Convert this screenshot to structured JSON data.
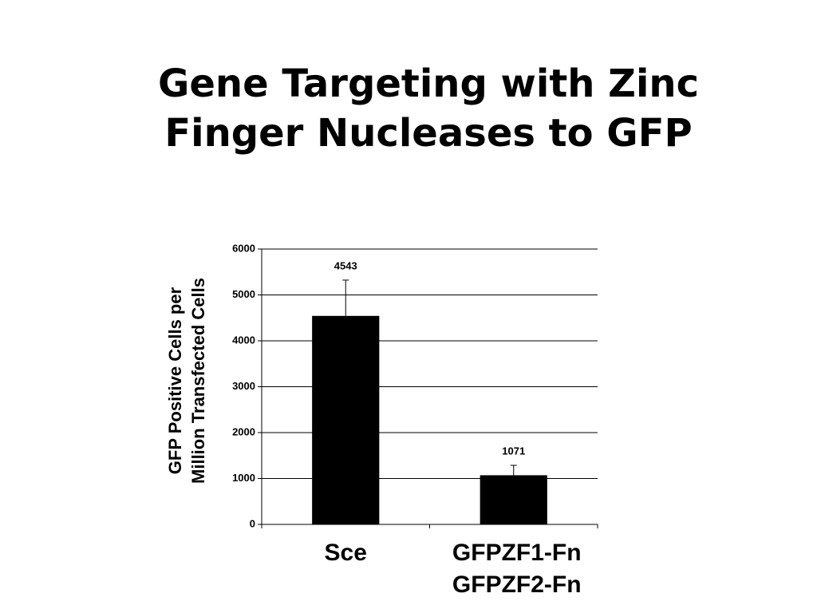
{
  "chart_data": {
    "type": "bar",
    "title": "Gene Targeting with Zinc\nFinger Nucleases to GFP",
    "y_label": "GFP Positive Cells per\nMillion Transfected Cells",
    "categories": [
      "Sce",
      "GFPZF1-Fn\nGFPZF2-Fn"
    ],
    "values": [
      4543,
      1071
    ],
    "errors": [
      780,
      216
    ],
    "color": "#000000",
    "ylim": [
      0,
      6000
    ],
    "yticks": [
      0,
      1000,
      2000,
      3000,
      4000,
      5000,
      6000
    ],
    "grid": true
  }
}
